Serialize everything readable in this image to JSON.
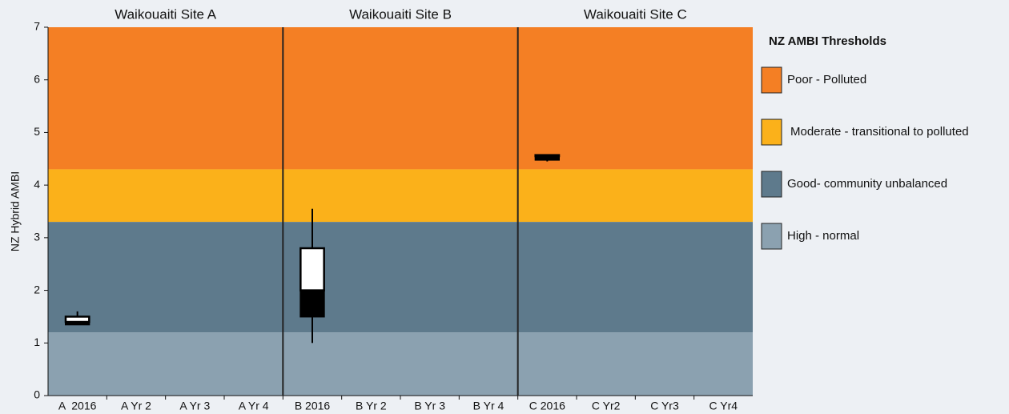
{
  "chart_data": {
    "type": "box",
    "ylabel": "NZ Hybrid AMBI",
    "ylim": [
      0,
      7
    ],
    "yticks": [
      0,
      1,
      2,
      3,
      4,
      5,
      6,
      7
    ],
    "groups": [
      "Waikouaiti Site A",
      "Waikouaiti Site B",
      "Waikouaiti Site C"
    ],
    "categories": [
      "A  2016",
      "A Yr 2",
      "A Yr 3",
      "A Yr 4",
      "B 2016",
      "B Yr 2",
      "B Yr 3",
      "B Yr 4",
      "C 2016",
      "C Yr2",
      "C Yr3",
      "C Yr4"
    ],
    "min": [
      1.35,
      null,
      null,
      null,
      1.0,
      null,
      null,
      null,
      4.45,
      null,
      null,
      null
    ],
    "q1": [
      1.35,
      null,
      null,
      null,
      1.5,
      null,
      null,
      null,
      4.48,
      null,
      null,
      null
    ],
    "median": [
      1.4,
      null,
      null,
      null,
      2.0,
      null,
      null,
      null,
      4.55,
      null,
      null,
      null
    ],
    "q3": [
      1.5,
      null,
      null,
      null,
      2.8,
      null,
      null,
      null,
      4.57,
      null,
      null,
      null
    ],
    "max": [
      1.6,
      null,
      null,
      null,
      3.55,
      null,
      null,
      null,
      4.57,
      null,
      null,
      null
    ],
    "legend_title": "NZ AMBI Thresholds",
    "bands": [
      {
        "name": "Poor - Polluted",
        "color": "#f47f24",
        "from": 4.3,
        "to": 7
      },
      {
        "name": "Moderate - transitional to polluted",
        "color": "#fbb11a",
        "from": 3.3,
        "to": 4.3
      },
      {
        "name": "Good- community unbalanced",
        "color": "#5e7a8c",
        "from": 1.2,
        "to": 3.3
      },
      {
        "name": "High - normal",
        "color": "#8ba1b0",
        "from": 0,
        "to": 1.2
      }
    ]
  }
}
